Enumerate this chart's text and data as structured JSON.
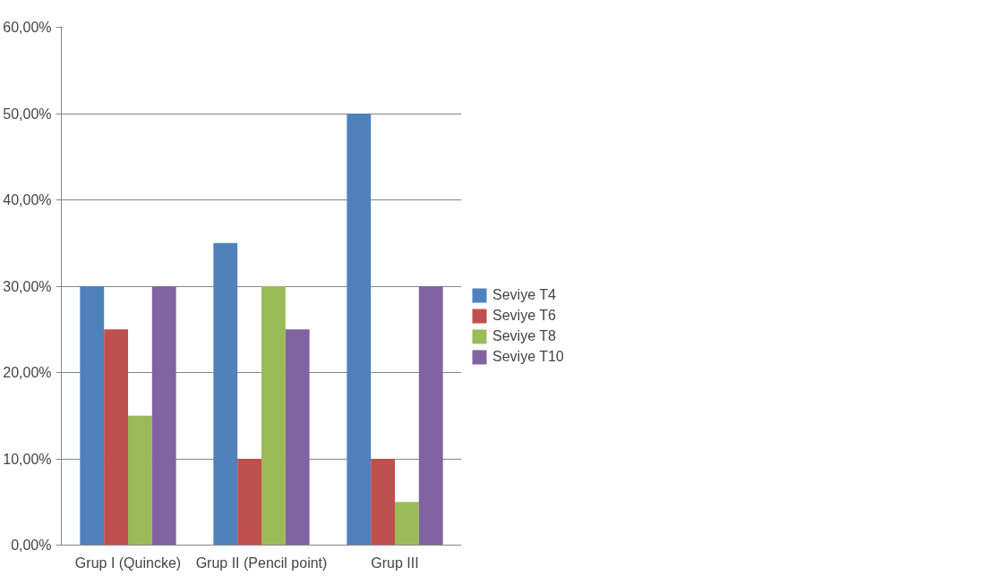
{
  "chart_data": {
    "type": "bar",
    "categories": [
      "Grup I (Quincke)",
      "Grup II (Pencil point)",
      "Grup III"
    ],
    "series": [
      {
        "name": "Seviye T4",
        "color": "#4f81bd",
        "values": [
          30,
          35,
          50
        ]
      },
      {
        "name": "Seviye T6",
        "color": "#c0504d",
        "values": [
          25,
          10,
          10
        ]
      },
      {
        "name": "Seviye T8",
        "color": "#9bbb59",
        "values": [
          15,
          30,
          5
        ]
      },
      {
        "name": "Seviye T10",
        "color": "#8064a2",
        "values": [
          30,
          25,
          30
        ]
      }
    ],
    "ylim": [
      0,
      60
    ],
    "yticks": [
      {
        "value": 0,
        "label": "0,00%"
      },
      {
        "value": 10,
        "label": "10,00%"
      },
      {
        "value": 20,
        "label": "20,00%"
      },
      {
        "value": 30,
        "label": "30,00%"
      },
      {
        "value": 40,
        "label": "40,00%"
      },
      {
        "value": 50,
        "label": "50,00%"
      },
      {
        "value": 60,
        "label": "60,00%"
      }
    ],
    "grid": "y",
    "legend": "right"
  }
}
